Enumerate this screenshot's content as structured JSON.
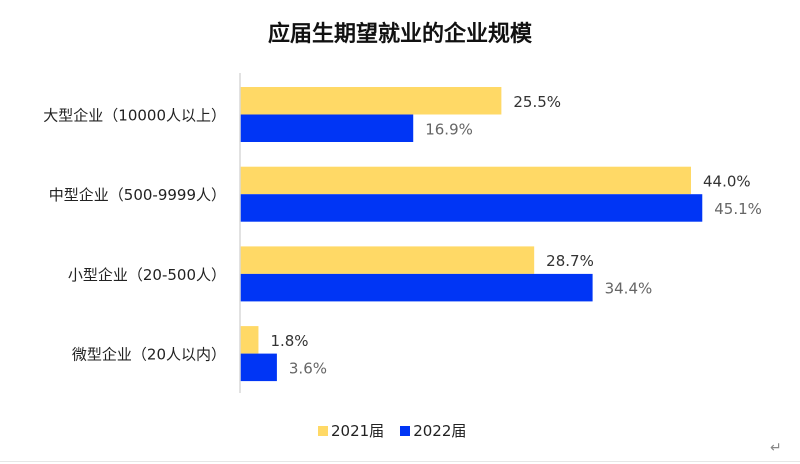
{
  "chart_data": {
    "type": "bar",
    "orientation": "horizontal",
    "title": "应届生期望就业的企业规模",
    "categories": [
      "大型企业（10000人以上）",
      "中型企业（500-9999人）",
      "小型企业（20-500人）",
      "微型企业（20人以内）"
    ],
    "series": [
      {
        "name": "2021届",
        "values": [
          25.5,
          44.0,
          28.7,
          1.8
        ],
        "labels": [
          "25.5%",
          "44.0%",
          "28.7%",
          "1.8%"
        ],
        "color": "#FFD966"
      },
      {
        "name": "2022届",
        "values": [
          16.9,
          45.1,
          34.4,
          3.6
        ],
        "labels": [
          "16.9%",
          "45.1%",
          "34.4%",
          "3.6%"
        ],
        "color": "#0035F5"
      }
    ],
    "xlim": [
      0,
      50
    ],
    "grid": false,
    "legend": "bottom",
    "unit": "%"
  },
  "misc": {
    "return_mark": "↵"
  }
}
